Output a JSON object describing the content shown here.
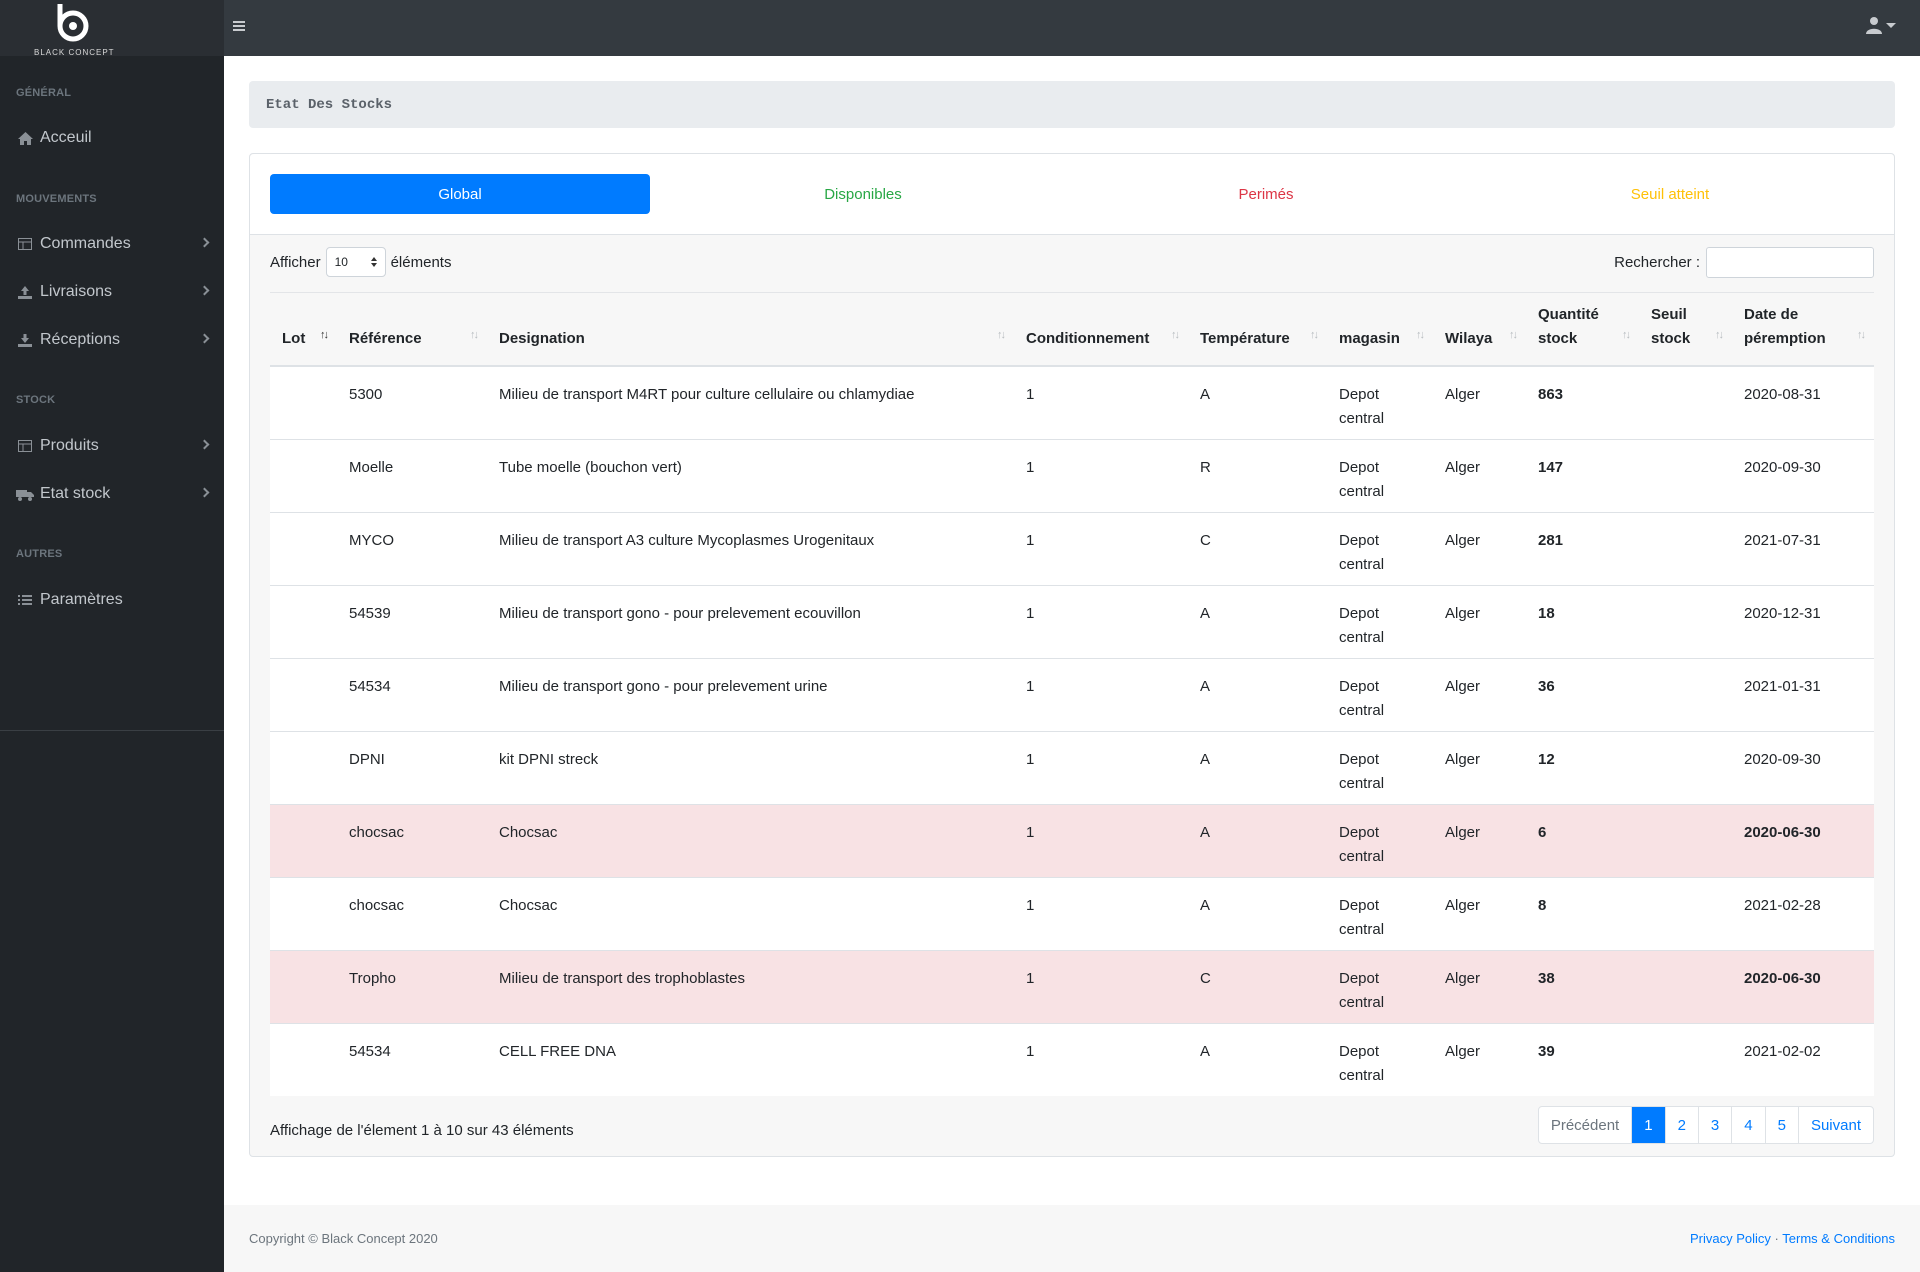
{
  "brand": {
    "name": "BLACK CONCEPT"
  },
  "sidebar": {
    "sections": [
      {
        "heading": "Général",
        "items": [
          {
            "label": "Acceuil",
            "icon": "home-icon"
          }
        ]
      },
      {
        "heading": "Mouvements",
        "items": [
          {
            "label": "Commandes",
            "icon": "table-icon"
          },
          {
            "label": "Livraisons",
            "icon": "upload-icon"
          },
          {
            "label": "Réceptions",
            "icon": "download-icon"
          }
        ]
      },
      {
        "heading": "Stock",
        "items": [
          {
            "label": "Produits",
            "icon": "table-icon"
          },
          {
            "label": "Etat stock",
            "icon": "truck-icon"
          }
        ]
      },
      {
        "heading": "Autres",
        "items": [
          {
            "label": "Paramètres",
            "icon": "list-icon"
          }
        ]
      }
    ]
  },
  "page": {
    "breadcrumb": "Etat Des Stocks"
  },
  "tabs": [
    {
      "label": "Global",
      "color": "#ffffff",
      "active": true
    },
    {
      "label": "Disponibles",
      "color": "#28a745",
      "active": false
    },
    {
      "label": "Perimés",
      "color": "#dc3545",
      "active": false
    },
    {
      "label": "Seuil atteint",
      "color": "#ffc107",
      "active": false
    }
  ],
  "table_controls": {
    "show_prefix": "Afficher",
    "page_size": "10",
    "show_suffix": "éléments",
    "search_label": "Rechercher :",
    "search_value": ""
  },
  "table": {
    "columns": [
      "Lot",
      "Référence",
      "Designation",
      "Conditionnement",
      "Température",
      "magasin",
      "Wilaya",
      "Quantité stock",
      "Seuil stock",
      "Date de péremption"
    ],
    "rows": [
      {
        "lot": "",
        "ref": "5300",
        "designation": "Milieu de transport M4RT pour culture cellulaire ou chlamydiae",
        "cond": "1",
        "temp": "A",
        "magasin": "Depot central",
        "wilaya": "Alger",
        "qty": "863",
        "seuil": "",
        "date": "2020-08-31",
        "expired": false,
        "cond_green": false
      },
      {
        "lot": "",
        "ref": "Moelle",
        "designation": "Tube moelle (bouchon vert)",
        "cond": "1",
        "temp": "R",
        "magasin": "Depot central",
        "wilaya": "Alger",
        "qty": "147",
        "seuil": "",
        "date": "2020-09-30",
        "expired": false,
        "cond_green": true
      },
      {
        "lot": "",
        "ref": "MYCO",
        "designation": "Milieu de transport A3 culture Mycoplasmes Urogenitaux",
        "cond": "1",
        "temp": "C",
        "magasin": "Depot central",
        "wilaya": "Alger",
        "qty": "281",
        "seuil": "",
        "date": "2021-07-31",
        "expired": false,
        "cond_green": true
      },
      {
        "lot": "",
        "ref": "54539",
        "designation": "Milieu de transport gono - pour prelevement ecouvillon",
        "cond": "1",
        "temp": "A",
        "magasin": "Depot central",
        "wilaya": "Alger",
        "qty": "18",
        "seuil": "",
        "date": "2020-12-31",
        "expired": false,
        "cond_green": false
      },
      {
        "lot": "",
        "ref": "54534",
        "designation": "Milieu de transport gono - pour prelevement urine",
        "cond": "1",
        "temp": "A",
        "magasin": "Depot central",
        "wilaya": "Alger",
        "qty": "36",
        "seuil": "",
        "date": "2021-01-31",
        "expired": false,
        "cond_green": false
      },
      {
        "lot": "",
        "ref": "DPNI",
        "designation": "kit DPNI streck",
        "cond": "1",
        "temp": "A",
        "magasin": "Depot central",
        "wilaya": "Alger",
        "qty": "12",
        "seuil": "",
        "date": "2020-09-30",
        "expired": false,
        "cond_green": true
      },
      {
        "lot": "",
        "ref": "chocsac",
        "designation": "Chocsac",
        "cond": "1",
        "temp": "A",
        "magasin": "Depot central",
        "wilaya": "Alger",
        "qty": "6",
        "seuil": "",
        "date": "2020-06-30",
        "expired": true,
        "cond_green": false
      },
      {
        "lot": "",
        "ref": "chocsac",
        "designation": "Chocsac",
        "cond": "1",
        "temp": "A",
        "magasin": "Depot central",
        "wilaya": "Alger",
        "qty": "8",
        "seuil": "",
        "date": "2021-02-28",
        "expired": false,
        "cond_green": false
      },
      {
        "lot": "",
        "ref": "Tropho",
        "designation": "Milieu de transport des trophoblastes",
        "cond": "1",
        "temp": "C",
        "magasin": "Depot central",
        "wilaya": "Alger",
        "qty": "38",
        "seuil": "",
        "date": "2020-06-30",
        "expired": true,
        "cond_green": false
      },
      {
        "lot": "",
        "ref": "54534",
        "designation": "CELL FREE DNA",
        "cond": "1",
        "temp": "A",
        "magasin": "Depot central",
        "wilaya": "Alger",
        "qty": "39",
        "seuil": "",
        "date": "2021-02-02",
        "expired": false,
        "cond_green": true
      }
    ]
  },
  "table_info": "Affichage de l'élement 1 à 10 sur 43 éléments",
  "pagination": {
    "prev": "Précédent",
    "pages": [
      "1",
      "2",
      "3",
      "4",
      "5"
    ],
    "current": "1",
    "next": "Suivant"
  },
  "footer": {
    "copyright": "Copyright © Black Concept 2020",
    "privacy": "Privacy Policy",
    "separator": "·",
    "terms": "Terms & Conditions"
  },
  "colors": {
    "primary": "#007bff",
    "success": "#28a745",
    "danger": "#dc3545",
    "warning": "#ffc107",
    "sidebar": "#212529",
    "topbar": "#343a40"
  }
}
